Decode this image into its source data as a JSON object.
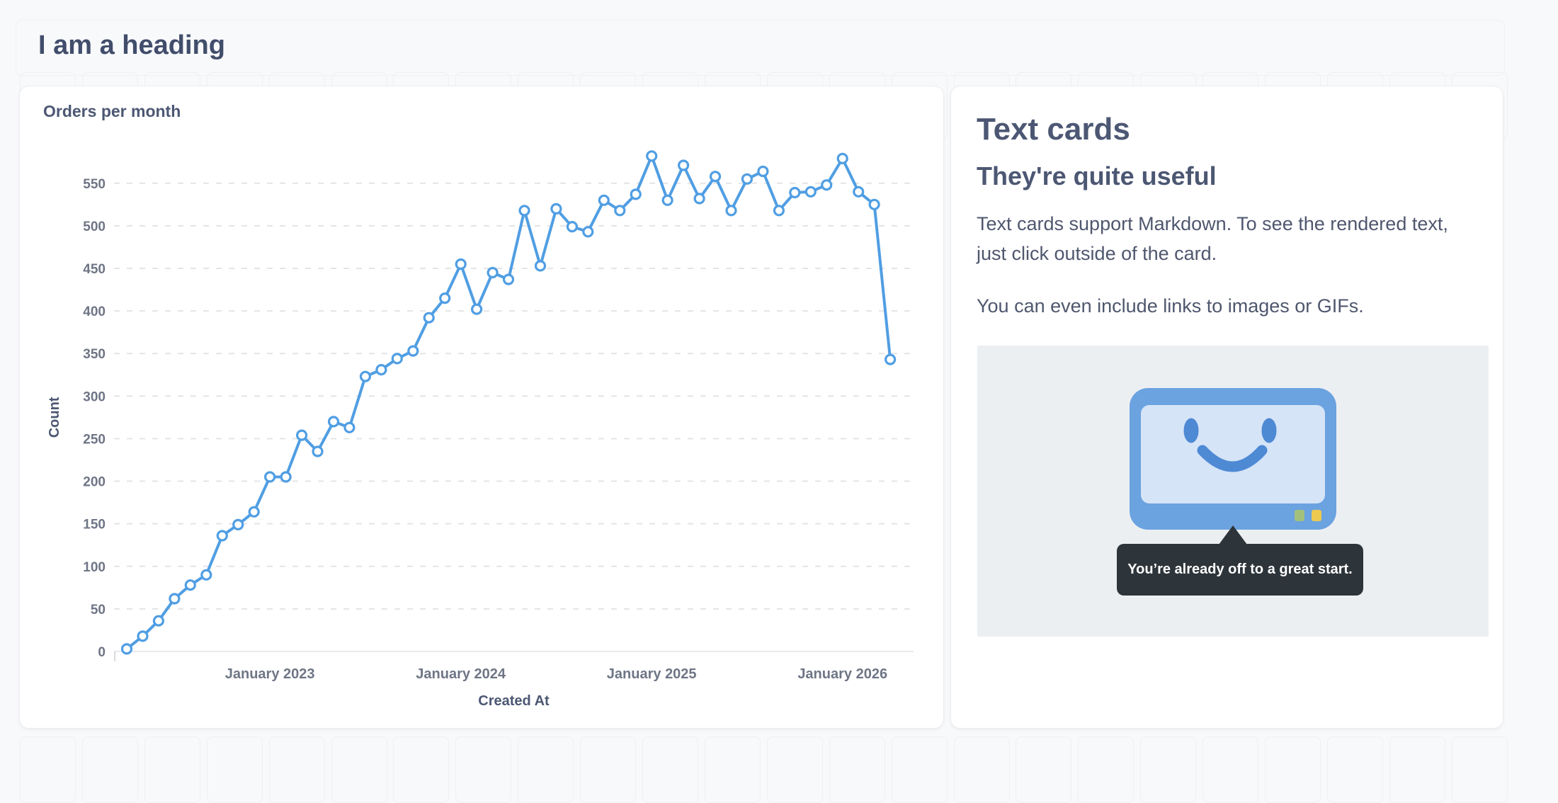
{
  "page": {
    "heading": "I am a heading"
  },
  "colors": {
    "brand_blue": "#509EE3",
    "text_dark": "#4C5773",
    "tick_gray": "#6E7585",
    "grid_line": "#E3E4E8",
    "axis_line": "#E8E9EC",
    "page_bg": "#F8F9FB",
    "card_bg": "#FFFFFF",
    "tooltip_bg": "#2D343A",
    "panel_bg": "#ECEFF2",
    "monitor_body": "#6BA2E0",
    "monitor_screen": "#D5E4F7",
    "monitor_face": "#4E89D4",
    "button_green": "#A3C17C",
    "button_yellow": "#EDC94F"
  },
  "chart_card": {
    "title": "Orders per month",
    "chart_data": {
      "type": "line",
      "title": "Orders per month",
      "xlabel": "Created At",
      "ylabel": "Count",
      "ylim": [
        0,
        591
      ],
      "grid": true,
      "yticks": [
        0,
        50,
        100,
        150,
        200,
        250,
        300,
        350,
        400,
        450,
        500,
        550
      ],
      "xticks": [
        {
          "label": "January 2023",
          "month": "2023-01"
        },
        {
          "label": "January 2024",
          "month": "2024-01"
        },
        {
          "label": "January 2025",
          "month": "2025-01"
        },
        {
          "label": "January 2026",
          "month": "2026-01"
        }
      ],
      "x": [
        "2022-04",
        "2022-05",
        "2022-06",
        "2022-07",
        "2022-08",
        "2022-09",
        "2022-10",
        "2022-11",
        "2022-12",
        "2023-01",
        "2023-02",
        "2023-03",
        "2023-04",
        "2023-05",
        "2023-06",
        "2023-07",
        "2023-08",
        "2023-09",
        "2023-10",
        "2023-11",
        "2023-12",
        "2024-01",
        "2024-02",
        "2024-03",
        "2024-04",
        "2024-05",
        "2024-06",
        "2024-07",
        "2024-08",
        "2024-09",
        "2024-10",
        "2024-11",
        "2024-12",
        "2025-01",
        "2025-02",
        "2025-03",
        "2025-04",
        "2025-05",
        "2025-06",
        "2025-07",
        "2025-08",
        "2025-09",
        "2025-10",
        "2025-11",
        "2025-12",
        "2026-01",
        "2026-02",
        "2026-03",
        "2026-04"
      ],
      "series": [
        {
          "name": "Count",
          "values": [
            3,
            18,
            36,
            62,
            78,
            90,
            136,
            149,
            164,
            205,
            205,
            254,
            235,
            270,
            263,
            323,
            331,
            344,
            353,
            392,
            415,
            455,
            402,
            445,
            437,
            518,
            453,
            520,
            499,
            493,
            530,
            518,
            537,
            582,
            530,
            571,
            532,
            558,
            518,
            555,
            564,
            518,
            539,
            540,
            548,
            579,
            540,
            525,
            343
          ]
        }
      ]
    }
  },
  "text_card": {
    "heading": "Text cards",
    "subheading": "They're quite useful",
    "paragraphs": [
      "Text cards support Markdown. To see the rendered text, just click outside of the card.",
      "You can even include links to images or GIFs."
    ],
    "image": {
      "name": "smiling-monitor-illustration",
      "tooltip": "You’re already off to a great start."
    }
  }
}
